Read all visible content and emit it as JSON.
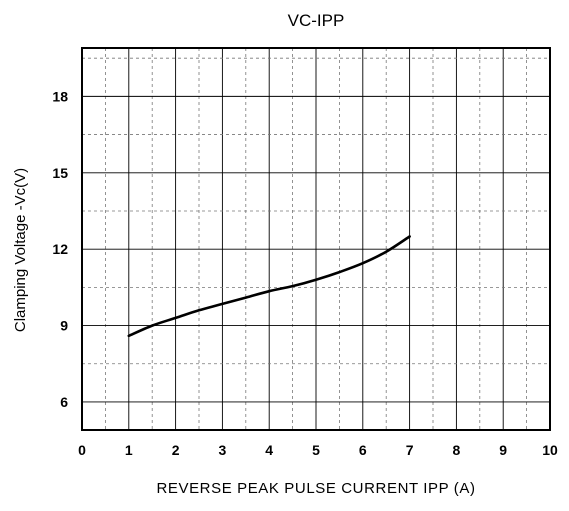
{
  "chart_data": {
    "type": "line",
    "title": "VC-IPP",
    "xlabel": "REVERSE PEAK PULSE CURRENT IPP (A)",
    "ylabel": "Clamping Voltage -Vc(V)",
    "xlim": [
      0,
      10
    ],
    "ylim": [
      4.9,
      19.9
    ],
    "x_ticks": [
      0,
      1,
      2,
      3,
      4,
      5,
      6,
      7,
      8,
      9,
      10
    ],
    "x_tick_labels": [
      "0",
      "1",
      "2",
      "3",
      "4",
      "5",
      "6",
      "7",
      "8",
      "9",
      "10"
    ],
    "y_ticks": [
      6,
      9,
      12,
      15,
      18
    ],
    "y_tick_labels": [
      "6",
      "9",
      "12",
      "15",
      "18"
    ],
    "grid": true,
    "series": [
      {
        "x": [
          1.0,
          1.5,
          2.0,
          2.5,
          3.0,
          3.5,
          4.0,
          4.5,
          5.0,
          5.5,
          6.0,
          6.5,
          7.0
        ],
        "y": [
          8.6,
          9.0,
          9.3,
          9.6,
          9.85,
          10.1,
          10.35,
          10.55,
          10.8,
          11.1,
          11.45,
          11.9,
          12.5
        ]
      }
    ]
  }
}
